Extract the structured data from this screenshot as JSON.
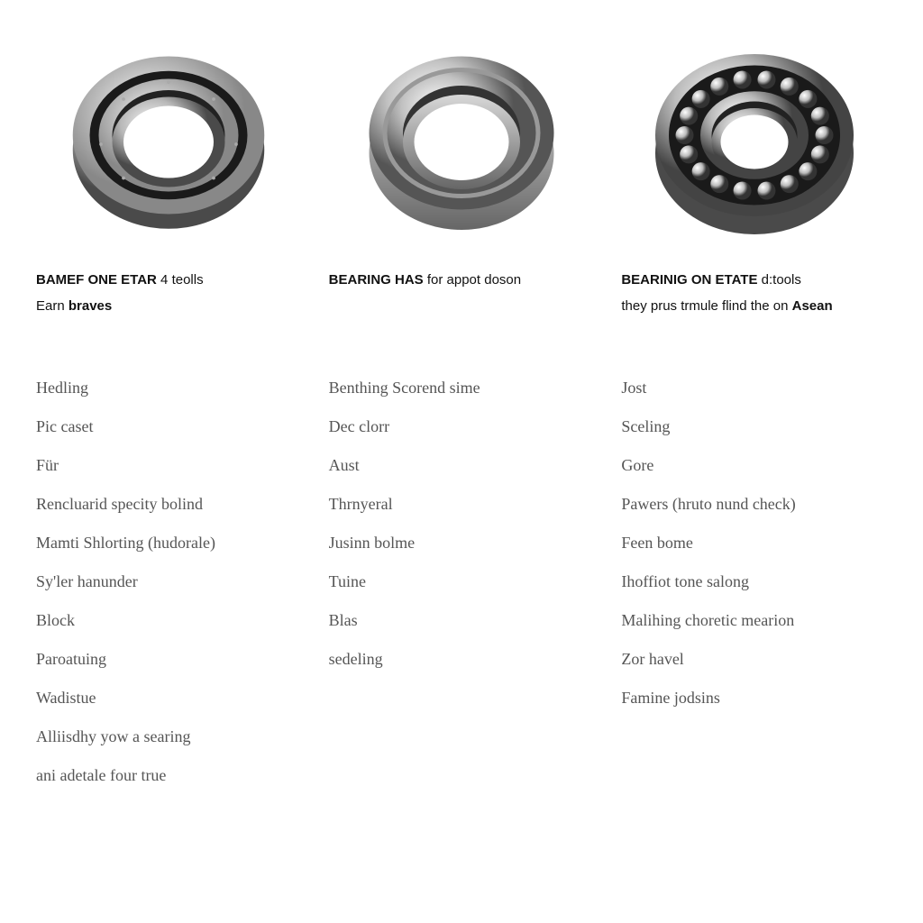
{
  "background_color": "#ffffff",
  "text_color": "#222222",
  "list_text_color": "#555555",
  "title_fontsize": 15,
  "list_fontsize": 18,
  "list_font_family": "Comic Sans MS",
  "columns": [
    {
      "bearing_type": "thin-section",
      "title_bold": "BAMEF ONE ETAR",
      "title_rest": " 4 teolls",
      "subtitle_prefix": "Earn ",
      "subtitle_bold": "braves",
      "subtitle_rest": "",
      "items": [
        "Hedling",
        "Pic caset",
        "Für",
        "Rencluarid specity bolind",
        "Mamti Shlorting (hudorale)",
        "Sy'ler hanunder",
        "Block",
        "Paroatuing",
        "Wadistue",
        "Alliisdhy yow a searing",
        "ani adetale four true"
      ]
    },
    {
      "bearing_type": "plain-ring",
      "title_bold": "BEARING HAS",
      "title_rest": " for appot doson",
      "subtitle_prefix": "",
      "subtitle_bold": "",
      "subtitle_rest": "",
      "items": [
        "Benthing Scorend sime",
        "Dec clorr",
        "Aust",
        "Thrnyeral",
        "Jusinn bolme",
        "Tuine",
        "Blas",
        "sedeling"
      ]
    },
    {
      "bearing_type": "ball-bearing",
      "title_bold": "BEARINIG ON ETATE",
      "title_rest": " d:tools",
      "subtitle_prefix": "they prus trmule flind the on ",
      "subtitle_bold": "Asean",
      "subtitle_rest": "",
      "items": [
        "Jost",
        "Sceling",
        "Gore",
        "Pawers (hruto nund check)",
        "Feen bome",
        "Ihoffiot tone salong",
        "Malihing choretic mearion",
        "Zor havel",
        "Famine jodsins"
      ]
    }
  ]
}
